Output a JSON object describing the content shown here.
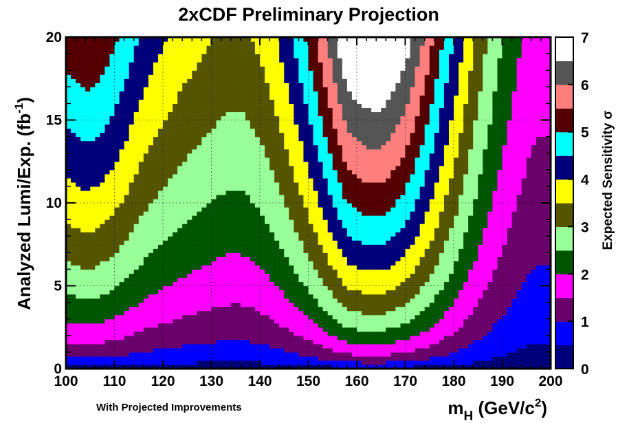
{
  "chart_data": {
    "type": "heatmap",
    "title": "2xCDF Preliminary Projection",
    "xlabel_main": "m",
    "xlabel_sub": "H",
    "xlabel_rest": " (GeV/c",
    "xlabel_sup": "2",
    "xlabel_end": ")",
    "ylabel_main": "Analyzed Lumi/Exp. (fb",
    "ylabel_sup": "-1",
    "ylabel_end": ")",
    "annotation": "With Projected Improvements",
    "colorbar_label": "Expected Sensitivity σ",
    "xlim": [
      100,
      200
    ],
    "ylim": [
      0,
      20
    ],
    "zlim": [
      0,
      7
    ],
    "x_ticks": [
      "100",
      "110",
      "120",
      "130",
      "140",
      "150",
      "160",
      "170",
      "180",
      "190",
      "200"
    ],
    "y_ticks": [
      "0",
      "5",
      "10",
      "15",
      "20"
    ],
    "z_ticks": [
      "0",
      "1",
      "2",
      "3",
      "4",
      "5",
      "6",
      "7"
    ],
    "grid": true,
    "sensitivity_per_sqrt_fb": {
      "mass": [
        100,
        102,
        104,
        106,
        108,
        110,
        112,
        114,
        116,
        118,
        120,
        122,
        124,
        126,
        128,
        130,
        132,
        134,
        136,
        138,
        140,
        142,
        144,
        146,
        148,
        150,
        152,
        154,
        156,
        158,
        160,
        162,
        164,
        166,
        168,
        170,
        172,
        174,
        176,
        178,
        180,
        182,
        184,
        186,
        188,
        190,
        192,
        194,
        196,
        198,
        200
      ],
      "s_at_1_fb": [
        1.18,
        1.2,
        1.22,
        1.21,
        1.18,
        1.14,
        1.09,
        1.03,
        0.98,
        0.94,
        0.91,
        0.88,
        0.85,
        0.83,
        0.81,
        0.79,
        0.77,
        0.76,
        0.76,
        0.78,
        0.81,
        0.85,
        0.91,
        0.98,
        1.06,
        1.15,
        1.25,
        1.36,
        1.47,
        1.58,
        1.62,
        1.64,
        1.65,
        1.63,
        1.58,
        1.52,
        1.43,
        1.33,
        1.22,
        1.11,
        1.01,
        0.9,
        0.8,
        0.71,
        0.63,
        0.56,
        0.5,
        0.45,
        0.41,
        0.4,
        0.4
      ]
    },
    "palette": [
      {
        "range": [
          0.0,
          0.5
        ],
        "color": "#00007a"
      },
      {
        "range": [
          0.5,
          1.0
        ],
        "color": "#0000ff"
      },
      {
        "range": [
          1.0,
          1.5
        ],
        "color": "#6a006a"
      },
      {
        "range": [
          1.5,
          2.0
        ],
        "color": "#ff00ff"
      },
      {
        "range": [
          2.0,
          2.5
        ],
        "color": "#005500"
      },
      {
        "range": [
          2.5,
          3.0
        ],
        "color": "#99ff99"
      },
      {
        "range": [
          3.0,
          3.5
        ],
        "color": "#555500"
      },
      {
        "range": [
          3.5,
          4.0
        ],
        "color": "#ffff00"
      },
      {
        "range": [
          4.0,
          4.5
        ],
        "color": "#00007a"
      },
      {
        "range": [
          4.5,
          5.0
        ],
        "color": "#00ffff"
      },
      {
        "range": [
          5.0,
          5.5
        ],
        "color": "#550000"
      },
      {
        "range": [
          5.5,
          6.0
        ],
        "color": "#ff7f7f"
      },
      {
        "range": [
          6.0,
          6.5
        ],
        "color": "#555555"
      },
      {
        "range": [
          6.5,
          7.0
        ],
        "color": "#ffffff"
      }
    ]
  }
}
